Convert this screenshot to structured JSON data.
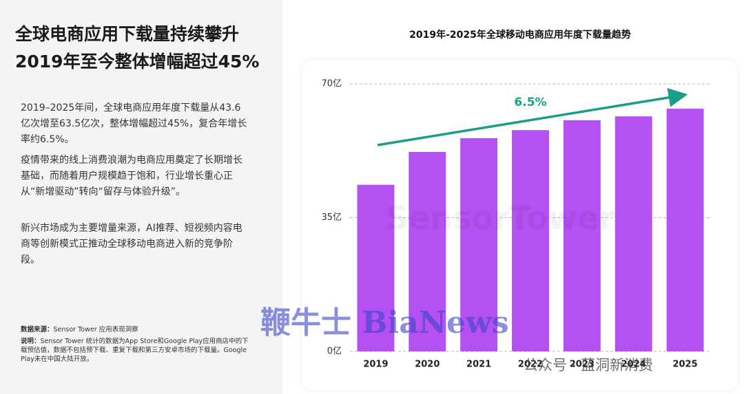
{
  "headline": [
    "全球电商应用下载量持续攀升",
    "2019年至今整体增幅超过45%"
  ],
  "paragraphs": [
    "2019–2025年间，全球电商应用年度下载量从43.6亿次增至63.5亿次，整体增幅超过45%，复合年增长率约6.5%。",
    "疫情带来的线上消费浪潮为电商应用奠定了长期增长基础，而随着用户规模趋于饱和，行业增长重心正从“新增驱动”转向“留存与体验升级”。",
    "新兴市场成为主要增量来源，AI推荐、短视频内容电商等创新模式正推动全球移动电商进入新的竞争阶段。"
  ],
  "source": {
    "label": "数据来源：",
    "text": "Sensor Tower 应用表现洞察"
  },
  "note": {
    "label": "说明：",
    "text": "Sensor Tower 统计的数据为App Store和Google Play应用商店中的下载预估值，数据不包括预下载、重复下载和第三方安卓市场的下载量。Google Play未在中国大陆开放。"
  },
  "watermarks": [
    "SensorTower",
    "鞭牛士 BiaNews",
    "公众号 · 蓝洞新消费"
  ],
  "chart_data": {
    "type": "bar",
    "title": "2019年-2025年全球移动电商应用年度下载量趋势",
    "categories": [
      "2019",
      "2020",
      "2021",
      "2022",
      "2023",
      "2024",
      "2025"
    ],
    "values": [
      43.6,
      52.2,
      55.8,
      57.9,
      60.5,
      61.5,
      63.5
    ],
    "color": "#b550f2",
    "ylim": [
      0,
      70
    ],
    "yticks": [
      {
        "value": 0,
        "label": "0亿"
      },
      {
        "value": 35,
        "label": "35亿"
      },
      {
        "value": 70,
        "label": "70亿"
      }
    ],
    "grid": true,
    "annotation": "6.5%"
  }
}
